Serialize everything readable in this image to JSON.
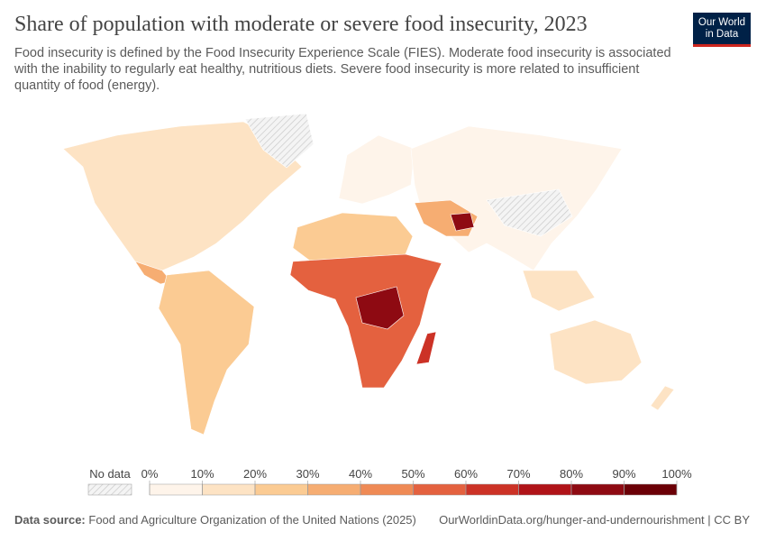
{
  "header": {
    "title": "Share of population with moderate or severe food insecurity, 2023",
    "subtitle": "Food insecurity is defined by the Food Insecurity Experience Scale (FIES). Moderate food insecurity is associated with the inability to regularly eat healthy, nutritious diets. Severe food insecurity is more related to insufficient quantity of food (energy).",
    "logo": [
      "Our World",
      "in Data"
    ]
  },
  "legend": {
    "no_data": "No data",
    "ticks": [
      {
        "value": 0,
        "label": "0%"
      },
      {
        "value": 10,
        "label": "10%"
      },
      {
        "value": 20,
        "label": "20%"
      },
      {
        "value": 30,
        "label": "30%"
      },
      {
        "value": 40,
        "label": "40%"
      },
      {
        "value": 50,
        "label": "50%"
      },
      {
        "value": 60,
        "label": "60%"
      },
      {
        "value": 70,
        "label": "70%"
      },
      {
        "value": 80,
        "label": "80%"
      },
      {
        "value": 90,
        "label": "90%"
      },
      {
        "value": 100,
        "label": "100%"
      }
    ],
    "colors": [
      "#fef4ea",
      "#fde3c4",
      "#fbcb93",
      "#f6ad72",
      "#ef8a55",
      "#e4613f",
      "#cc3226",
      "#b01318",
      "#8e0a12",
      "#6b0006"
    ]
  },
  "footer": {
    "source_label": "Data source:",
    "source": "Food and Agriculture Organization of the United Nations (2025)",
    "url": "OurWorldinData.org/hunger-and-undernourishment | CC BY"
  }
}
